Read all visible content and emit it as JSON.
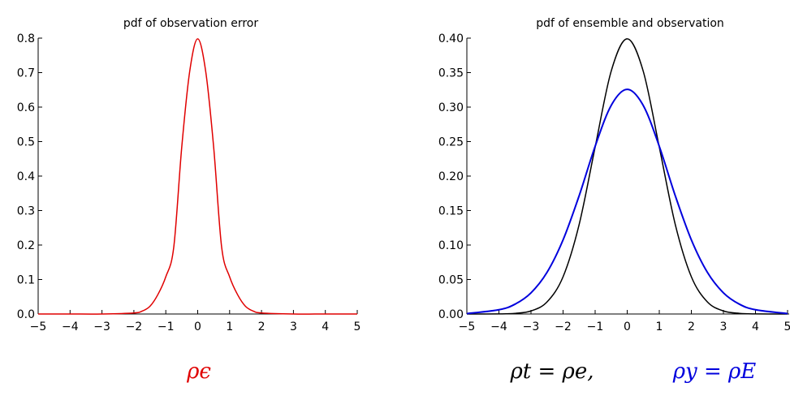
{
  "chart_data": [
    {
      "type": "line",
      "title": "pdf of observation error",
      "xlabel": "",
      "ylabel": "",
      "xlim": [
        -5,
        5
      ],
      "ylim": [
        0,
        0.8
      ],
      "x_ticks": [
        "−5",
        "−4",
        "−3",
        "−2",
        "−1",
        "0",
        "1",
        "2",
        "3",
        "4",
        "5"
      ],
      "y_ticks": [
        "0.0",
        "0.1",
        "0.2",
        "0.3",
        "0.4",
        "0.5",
        "0.6",
        "0.7",
        "0.8"
      ],
      "series": [
        {
          "color": "#e00000",
          "x": [
            -5,
            -4,
            -3,
            -2,
            -1.75,
            -1.5,
            -1.25,
            -1,
            -0.75,
            -0.5,
            -0.25,
            0,
            0.25,
            0.5,
            0.75,
            1,
            1.25,
            1.5,
            1.75,
            2,
            3,
            4,
            5
          ],
          "values": [
            0,
            0,
            0,
            0.003,
            0.008,
            0.022,
            0.056,
            0.108,
            0.194,
            0.484,
            0.704,
            0.798,
            0.704,
            0.484,
            0.194,
            0.108,
            0.056,
            0.022,
            0.008,
            0.003,
            0,
            0,
            0
          ]
        }
      ],
      "caption": "ρϵ"
    },
    {
      "type": "line",
      "title": "pdf of ensemble and observation",
      "xlabel": "",
      "ylabel": "",
      "xlim": [
        -5,
        5
      ],
      "ylim": [
        0,
        0.4
      ],
      "x_ticks": [
        "−5",
        "−4",
        "−3",
        "−2",
        "−1",
        "0",
        "1",
        "2",
        "3",
        "4",
        "5"
      ],
      "y_ticks": [
        "0.00",
        "0.05",
        "0.10",
        "0.15",
        "0.20",
        "0.25",
        "0.30",
        "0.35",
        "0.40"
      ],
      "series": [
        {
          "color": "#000000",
          "x": [
            -5,
            -4,
            -3.5,
            -3,
            -2.5,
            -2,
            -1.5,
            -1,
            -0.5,
            0,
            0.5,
            1,
            1.5,
            2,
            2.5,
            3,
            3.5,
            4,
            5
          ],
          "values": [
            0,
            0.0001,
            0.0009,
            0.0044,
            0.0175,
            0.054,
            0.1295,
            0.242,
            0.352,
            0.399,
            0.352,
            0.242,
            0.1295,
            0.054,
            0.0175,
            0.0044,
            0.0009,
            0.0001,
            0
          ]
        },
        {
          "color": "#0000dd",
          "x": [
            -5,
            -4,
            -3.5,
            -3,
            -2.5,
            -2,
            -1.5,
            -1,
            -0.5,
            0,
            0.5,
            1,
            1.5,
            2,
            2.5,
            3,
            3.5,
            4,
            5
          ],
          "values": [
            0.0006,
            0.0062,
            0.0142,
            0.0307,
            0.0604,
            0.1075,
            0.1713,
            0.2432,
            0.3024,
            0.3257,
            0.3024,
            0.2432,
            0.1713,
            0.1075,
            0.0604,
            0.0307,
            0.0142,
            0.0062,
            0.0006
          ]
        }
      ],
      "caption_left": "ρt = ρe,",
      "caption_right": "ρy = ρE"
    }
  ],
  "colors": {
    "red": "#e00000",
    "blue": "#0000dd",
    "black": "#000000"
  }
}
